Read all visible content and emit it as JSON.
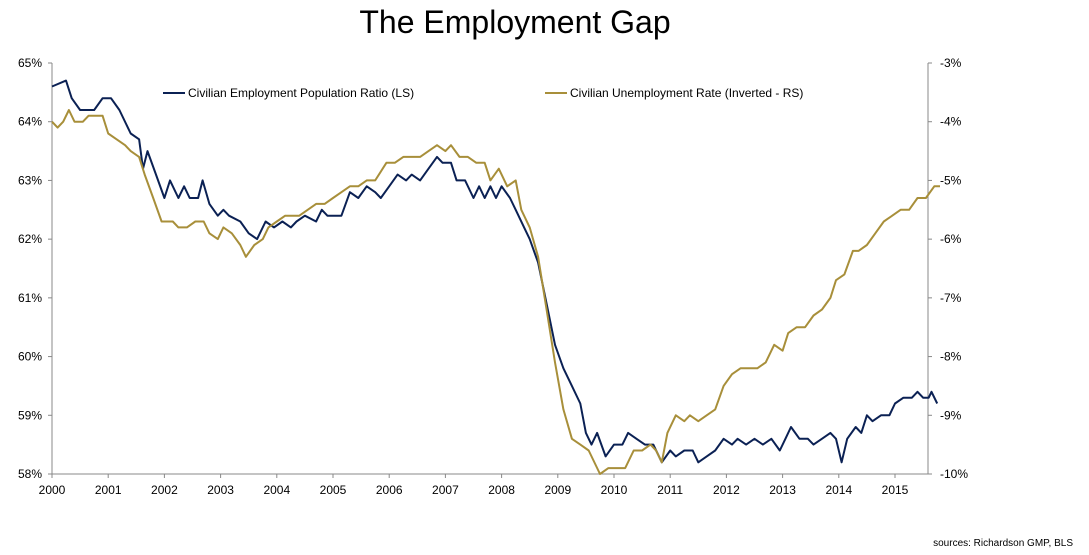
{
  "chart_data": {
    "type": "line",
    "title": "The Employment Gap",
    "source": "sources: Richardson GMP, BLS",
    "x_ticks": [
      "2000",
      "2001",
      "2002",
      "2003",
      "2004",
      "2005",
      "2006",
      "2007",
      "2008",
      "2009",
      "2010",
      "2011",
      "2012",
      "2013",
      "2014",
      "2015"
    ],
    "left_axis": {
      "ticks": [
        "58%",
        "59%",
        "60%",
        "61%",
        "62%",
        "63%",
        "64%",
        "65%"
      ],
      "ylim": [
        58,
        65
      ]
    },
    "right_axis": {
      "ticks": [
        "-10%",
        "-9%",
        "-8%",
        "-7%",
        "-6%",
        "-5%",
        "-4%",
        "-3%"
      ],
      "ylim": [
        -10,
        -3
      ]
    },
    "grid": false,
    "legend": "top",
    "series": [
      {
        "name": "Civilian Employment Population Ratio (LS)",
        "axis": "left",
        "color": "#0b2154",
        "points": [
          [
            2000.0,
            64.6
          ],
          [
            2000.25,
            64.7
          ],
          [
            2000.35,
            64.4
          ],
          [
            2000.5,
            64.2
          ],
          [
            2000.75,
            64.2
          ],
          [
            2000.9,
            64.4
          ],
          [
            2001.05,
            64.4
          ],
          [
            2001.2,
            64.2
          ],
          [
            2001.4,
            63.8
          ],
          [
            2001.55,
            63.7
          ],
          [
            2001.62,
            63.2
          ],
          [
            2001.7,
            63.5
          ],
          [
            2001.85,
            63.1
          ],
          [
            2002.0,
            62.7
          ],
          [
            2002.1,
            63.0
          ],
          [
            2002.25,
            62.7
          ],
          [
            2002.35,
            62.9
          ],
          [
            2002.45,
            62.7
          ],
          [
            2002.6,
            62.7
          ],
          [
            2002.68,
            63.0
          ],
          [
            2002.8,
            62.6
          ],
          [
            2002.95,
            62.4
          ],
          [
            2003.05,
            62.5
          ],
          [
            2003.15,
            62.4
          ],
          [
            2003.35,
            62.3
          ],
          [
            2003.5,
            62.1
          ],
          [
            2003.65,
            62.0
          ],
          [
            2003.8,
            62.3
          ],
          [
            2003.95,
            62.2
          ],
          [
            2004.1,
            62.3
          ],
          [
            2004.25,
            62.2
          ],
          [
            2004.35,
            62.3
          ],
          [
            2004.5,
            62.4
          ],
          [
            2004.7,
            62.3
          ],
          [
            2004.8,
            62.5
          ],
          [
            2004.9,
            62.4
          ],
          [
            2005.15,
            62.4
          ],
          [
            2005.3,
            62.8
          ],
          [
            2005.45,
            62.7
          ],
          [
            2005.6,
            62.9
          ],
          [
            2005.75,
            62.8
          ],
          [
            2005.85,
            62.7
          ],
          [
            2006.0,
            62.9
          ],
          [
            2006.15,
            63.1
          ],
          [
            2006.3,
            63.0
          ],
          [
            2006.4,
            63.1
          ],
          [
            2006.55,
            63.0
          ],
          [
            2006.7,
            63.2
          ],
          [
            2006.85,
            63.4
          ],
          [
            2006.95,
            63.3
          ],
          [
            2007.1,
            63.3
          ],
          [
            2007.2,
            63.0
          ],
          [
            2007.35,
            63.0
          ],
          [
            2007.5,
            62.7
          ],
          [
            2007.6,
            62.9
          ],
          [
            2007.7,
            62.7
          ],
          [
            2007.8,
            62.9
          ],
          [
            2007.9,
            62.7
          ],
          [
            2008.0,
            62.9
          ],
          [
            2008.15,
            62.7
          ],
          [
            2008.25,
            62.5
          ],
          [
            2008.4,
            62.2
          ],
          [
            2008.5,
            62.0
          ],
          [
            2008.65,
            61.6
          ],
          [
            2008.8,
            60.9
          ],
          [
            2008.95,
            60.2
          ],
          [
            2009.1,
            59.8
          ],
          [
            2009.25,
            59.5
          ],
          [
            2009.4,
            59.2
          ],
          [
            2009.5,
            58.7
          ],
          [
            2009.6,
            58.5
          ],
          [
            2009.7,
            58.7
          ],
          [
            2009.85,
            58.3
          ],
          [
            2010.0,
            58.5
          ],
          [
            2010.15,
            58.5
          ],
          [
            2010.25,
            58.7
          ],
          [
            2010.4,
            58.6
          ],
          [
            2010.55,
            58.5
          ],
          [
            2010.7,
            58.5
          ],
          [
            2010.85,
            58.2
          ],
          [
            2011.0,
            58.4
          ],
          [
            2011.1,
            58.3
          ],
          [
            2011.25,
            58.4
          ],
          [
            2011.4,
            58.4
          ],
          [
            2011.5,
            58.2
          ],
          [
            2011.65,
            58.3
          ],
          [
            2011.8,
            58.4
          ],
          [
            2011.95,
            58.6
          ],
          [
            2012.1,
            58.5
          ],
          [
            2012.2,
            58.6
          ],
          [
            2012.35,
            58.5
          ],
          [
            2012.5,
            58.6
          ],
          [
            2012.65,
            58.5
          ],
          [
            2012.8,
            58.6
          ],
          [
            2012.95,
            58.4
          ],
          [
            2013.05,
            58.6
          ],
          [
            2013.15,
            58.8
          ],
          [
            2013.3,
            58.6
          ],
          [
            2013.45,
            58.6
          ],
          [
            2013.55,
            58.5
          ],
          [
            2013.7,
            58.6
          ],
          [
            2013.85,
            58.7
          ],
          [
            2013.95,
            58.6
          ],
          [
            2014.05,
            58.2
          ],
          [
            2014.15,
            58.6
          ],
          [
            2014.3,
            58.8
          ],
          [
            2014.4,
            58.7
          ],
          [
            2014.5,
            59.0
          ],
          [
            2014.6,
            58.9
          ],
          [
            2014.75,
            59.0
          ],
          [
            2014.9,
            59.0
          ],
          [
            2015.0,
            59.2
          ],
          [
            2015.15,
            59.3
          ],
          [
            2015.3,
            59.3
          ],
          [
            2015.4,
            59.4
          ],
          [
            2015.5,
            59.3
          ],
          [
            2015.6,
            59.3
          ],
          [
            2015.65,
            59.4
          ],
          [
            2015.75,
            59.2
          ]
        ]
      },
      {
        "name": "Civilian Unemployment Rate (Inverted - RS)",
        "axis": "right",
        "color": "#a88f3a",
        "points": [
          [
            2000.0,
            -4.0
          ],
          [
            2000.1,
            -4.1
          ],
          [
            2000.2,
            -4.0
          ],
          [
            2000.3,
            -3.8
          ],
          [
            2000.4,
            -4.0
          ],
          [
            2000.55,
            -4.0
          ],
          [
            2000.65,
            -3.9
          ],
          [
            2000.75,
            -3.9
          ],
          [
            2000.9,
            -3.9
          ],
          [
            2001.0,
            -4.2
          ],
          [
            2001.15,
            -4.3
          ],
          [
            2001.3,
            -4.4
          ],
          [
            2001.4,
            -4.5
          ],
          [
            2001.55,
            -4.6
          ],
          [
            2001.65,
            -4.9
          ],
          [
            2001.8,
            -5.3
          ],
          [
            2001.95,
            -5.7
          ],
          [
            2002.15,
            -5.7
          ],
          [
            2002.25,
            -5.8
          ],
          [
            2002.4,
            -5.8
          ],
          [
            2002.55,
            -5.7
          ],
          [
            2002.7,
            -5.7
          ],
          [
            2002.8,
            -5.9
          ],
          [
            2002.95,
            -6.0
          ],
          [
            2003.05,
            -5.8
          ],
          [
            2003.2,
            -5.9
          ],
          [
            2003.35,
            -6.1
          ],
          [
            2003.45,
            -6.3
          ],
          [
            2003.6,
            -6.1
          ],
          [
            2003.75,
            -6.0
          ],
          [
            2003.85,
            -5.8
          ],
          [
            2004.0,
            -5.7
          ],
          [
            2004.15,
            -5.6
          ],
          [
            2004.25,
            -5.6
          ],
          [
            2004.4,
            -5.6
          ],
          [
            2004.55,
            -5.5
          ],
          [
            2004.7,
            -5.4
          ],
          [
            2004.85,
            -5.4
          ],
          [
            2005.0,
            -5.3
          ],
          [
            2005.15,
            -5.2
          ],
          [
            2005.3,
            -5.1
          ],
          [
            2005.45,
            -5.1
          ],
          [
            2005.6,
            -5.0
          ],
          [
            2005.75,
            -5.0
          ],
          [
            2005.95,
            -4.7
          ],
          [
            2006.1,
            -4.7
          ],
          [
            2006.25,
            -4.6
          ],
          [
            2006.4,
            -4.6
          ],
          [
            2006.55,
            -4.6
          ],
          [
            2006.7,
            -4.5
          ],
          [
            2006.85,
            -4.4
          ],
          [
            2007.0,
            -4.5
          ],
          [
            2007.1,
            -4.4
          ],
          [
            2007.25,
            -4.6
          ],
          [
            2007.4,
            -4.6
          ],
          [
            2007.55,
            -4.7
          ],
          [
            2007.7,
            -4.7
          ],
          [
            2007.8,
            -5.0
          ],
          [
            2007.95,
            -4.8
          ],
          [
            2008.1,
            -5.1
          ],
          [
            2008.25,
            -5.0
          ],
          [
            2008.35,
            -5.5
          ],
          [
            2008.5,
            -5.8
          ],
          [
            2008.65,
            -6.3
          ],
          [
            2008.8,
            -7.2
          ],
          [
            2008.95,
            -8.1
          ],
          [
            2009.1,
            -8.9
          ],
          [
            2009.25,
            -9.4
          ],
          [
            2009.4,
            -9.5
          ],
          [
            2009.55,
            -9.6
          ],
          [
            2009.75,
            -10.0
          ],
          [
            2009.9,
            -9.9
          ],
          [
            2010.05,
            -9.9
          ],
          [
            2010.2,
            -9.9
          ],
          [
            2010.35,
            -9.6
          ],
          [
            2010.5,
            -9.6
          ],
          [
            2010.65,
            -9.5
          ],
          [
            2010.75,
            -9.6
          ],
          [
            2010.85,
            -9.8
          ],
          [
            2010.95,
            -9.3
          ],
          [
            2011.1,
            -9.0
          ],
          [
            2011.25,
            -9.1
          ],
          [
            2011.35,
            -9.0
          ],
          [
            2011.5,
            -9.1
          ],
          [
            2011.65,
            -9.0
          ],
          [
            2011.8,
            -8.9
          ],
          [
            2011.95,
            -8.5
          ],
          [
            2012.1,
            -8.3
          ],
          [
            2012.25,
            -8.2
          ],
          [
            2012.4,
            -8.2
          ],
          [
            2012.55,
            -8.2
          ],
          [
            2012.7,
            -8.1
          ],
          [
            2012.85,
            -7.8
          ],
          [
            2013.0,
            -7.9
          ],
          [
            2013.1,
            -7.6
          ],
          [
            2013.25,
            -7.5
          ],
          [
            2013.4,
            -7.5
          ],
          [
            2013.55,
            -7.3
          ],
          [
            2013.7,
            -7.2
          ],
          [
            2013.85,
            -7.0
          ],
          [
            2013.95,
            -6.7
          ],
          [
            2014.1,
            -6.6
          ],
          [
            2014.25,
            -6.2
          ],
          [
            2014.35,
            -6.2
          ],
          [
            2014.5,
            -6.1
          ],
          [
            2014.65,
            -5.9
          ],
          [
            2014.8,
            -5.7
          ],
          [
            2014.95,
            -5.6
          ],
          [
            2015.1,
            -5.5
          ],
          [
            2015.25,
            -5.5
          ],
          [
            2015.4,
            -5.3
          ],
          [
            2015.55,
            -5.3
          ],
          [
            2015.7,
            -5.1
          ],
          [
            2015.8,
            -5.1
          ]
        ]
      }
    ]
  }
}
